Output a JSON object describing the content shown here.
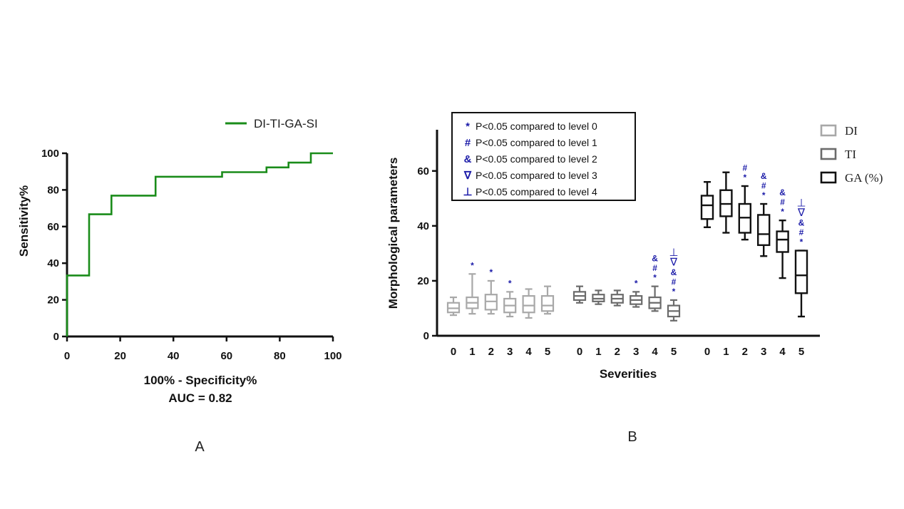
{
  "chart_data": [
    {
      "type": "line",
      "subtype": "roc-step",
      "panel_label": "A",
      "xlabel": "100% - Specificity%",
      "annotation": "AUC = 0.82",
      "ylabel": "Sensitivity%",
      "xlim": [
        0,
        100
      ],
      "ylim": [
        0,
        100
      ],
      "xticks": [
        0,
        20,
        40,
        60,
        80,
        100
      ],
      "yticks": [
        0,
        20,
        40,
        60,
        80,
        100
      ],
      "legend_position": "top-right",
      "series": [
        {
          "name": "DI-TI-GA-SI",
          "color": "#1a8c1a",
          "x": [
            0,
            0,
            8.3,
            8.3,
            16.7,
            16.7,
            33.3,
            33.3,
            58.3,
            58.3,
            75,
            75,
            83.3,
            83.3,
            91.7,
            91.7,
            100
          ],
          "y": [
            0,
            33.3,
            33.3,
            66.7,
            66.7,
            76.9,
            76.9,
            87.2,
            87.2,
            89.7,
            89.7,
            92.3,
            92.3,
            94.9,
            94.9,
            100,
            100
          ]
        }
      ]
    },
    {
      "type": "box",
      "panel_label": "B",
      "xlabel": "Severities",
      "ylabel": "Morphological parameters",
      "ylim": [
        0,
        75
      ],
      "yticks": [
        0,
        20,
        40,
        60
      ],
      "categories": [
        "0",
        "1",
        "2",
        "3",
        "4",
        "5"
      ],
      "legend_position": "top-right",
      "series": [
        {
          "name": "DI",
          "color": "#a8a8a8",
          "boxes": [
            {
              "min": 7.5,
              "q1": 8.5,
              "median": 10,
              "q3": 12,
              "max": 14,
              "sig": []
            },
            {
              "min": 8,
              "q1": 10,
              "median": 12,
              "q3": 14,
              "max": 22.5,
              "sig": [
                "*"
              ]
            },
            {
              "min": 8,
              "q1": 9.5,
              "median": 12.5,
              "q3": 15,
              "max": 20,
              "sig": [
                "*"
              ]
            },
            {
              "min": 7,
              "q1": 8.5,
              "median": 11,
              "q3": 13.5,
              "max": 16,
              "sig": [
                "*"
              ]
            },
            {
              "min": 6.5,
              "q1": 8.5,
              "median": 11,
              "q3": 14.5,
              "max": 17,
              "sig": []
            },
            {
              "min": 8,
              "q1": 9,
              "median": 11,
              "q3": 14.5,
              "max": 18,
              "sig": []
            }
          ]
        },
        {
          "name": "TI",
          "color": "#6b6b6b",
          "boxes": [
            {
              "min": 12,
              "q1": 13,
              "median": 14.5,
              "q3": 16,
              "max": 18,
              "sig": []
            },
            {
              "min": 11.5,
              "q1": 12.5,
              "median": 13.5,
              "q3": 15,
              "max": 16.5,
              "sig": []
            },
            {
              "min": 11,
              "q1": 12,
              "median": 13.5,
              "q3": 15,
              "max": 16.5,
              "sig": []
            },
            {
              "min": 10.5,
              "q1": 11.5,
              "median": 13,
              "q3": 14.5,
              "max": 16,
              "sig": [
                "*"
              ]
            },
            {
              "min": 9,
              "q1": 10,
              "median": 12,
              "q3": 14,
              "max": 18,
              "sig": [
                "*",
                "#",
                "&"
              ]
            },
            {
              "min": 5.5,
              "q1": 7,
              "median": 9,
              "q3": 11,
              "max": 13,
              "sig": [
                "*",
                "#",
                "&",
                "∇",
                "⊥"
              ]
            }
          ]
        },
        {
          "name": "GA (%)",
          "color": "#111111",
          "boxes": [
            {
              "min": 39.5,
              "q1": 42.5,
              "median": 47.5,
              "q3": 51,
              "max": 56,
              "sig": []
            },
            {
              "min": 37.5,
              "q1": 43.5,
              "median": 48,
              "q3": 53,
              "max": 59.5,
              "sig": []
            },
            {
              "min": 35,
              "q1": 37.5,
              "median": 43,
              "q3": 48,
              "max": 54.5,
              "sig": [
                "*",
                "#"
              ]
            },
            {
              "min": 29,
              "q1": 33,
              "median": 37,
              "q3": 44,
              "max": 48,
              "sig": [
                "*",
                "#",
                "&"
              ]
            },
            {
              "min": 21,
              "q1": 30.5,
              "median": 35,
              "q3": 38,
              "max": 42,
              "sig": [
                "*",
                "#",
                "&"
              ]
            },
            {
              "min": 7,
              "q1": 15.5,
              "median": 22,
              "q3": 31,
              "max": 31,
              "sig": [
                "*",
                "#",
                "&",
                "∇",
                "⊥"
              ]
            }
          ]
        }
      ],
      "significance_legend": [
        {
          "symbol": "*",
          "text": "P<0.05 compared to level 0"
        },
        {
          "symbol": "#",
          "text": "P<0.05 compared to level 1"
        },
        {
          "symbol": "&",
          "text": "P<0.05 compared to level 2"
        },
        {
          "symbol": "∇",
          "text": "P<0.05 compared to level 3"
        },
        {
          "symbol": "⊥",
          "text": "P<0.05 compared to level 4"
        }
      ]
    }
  ]
}
